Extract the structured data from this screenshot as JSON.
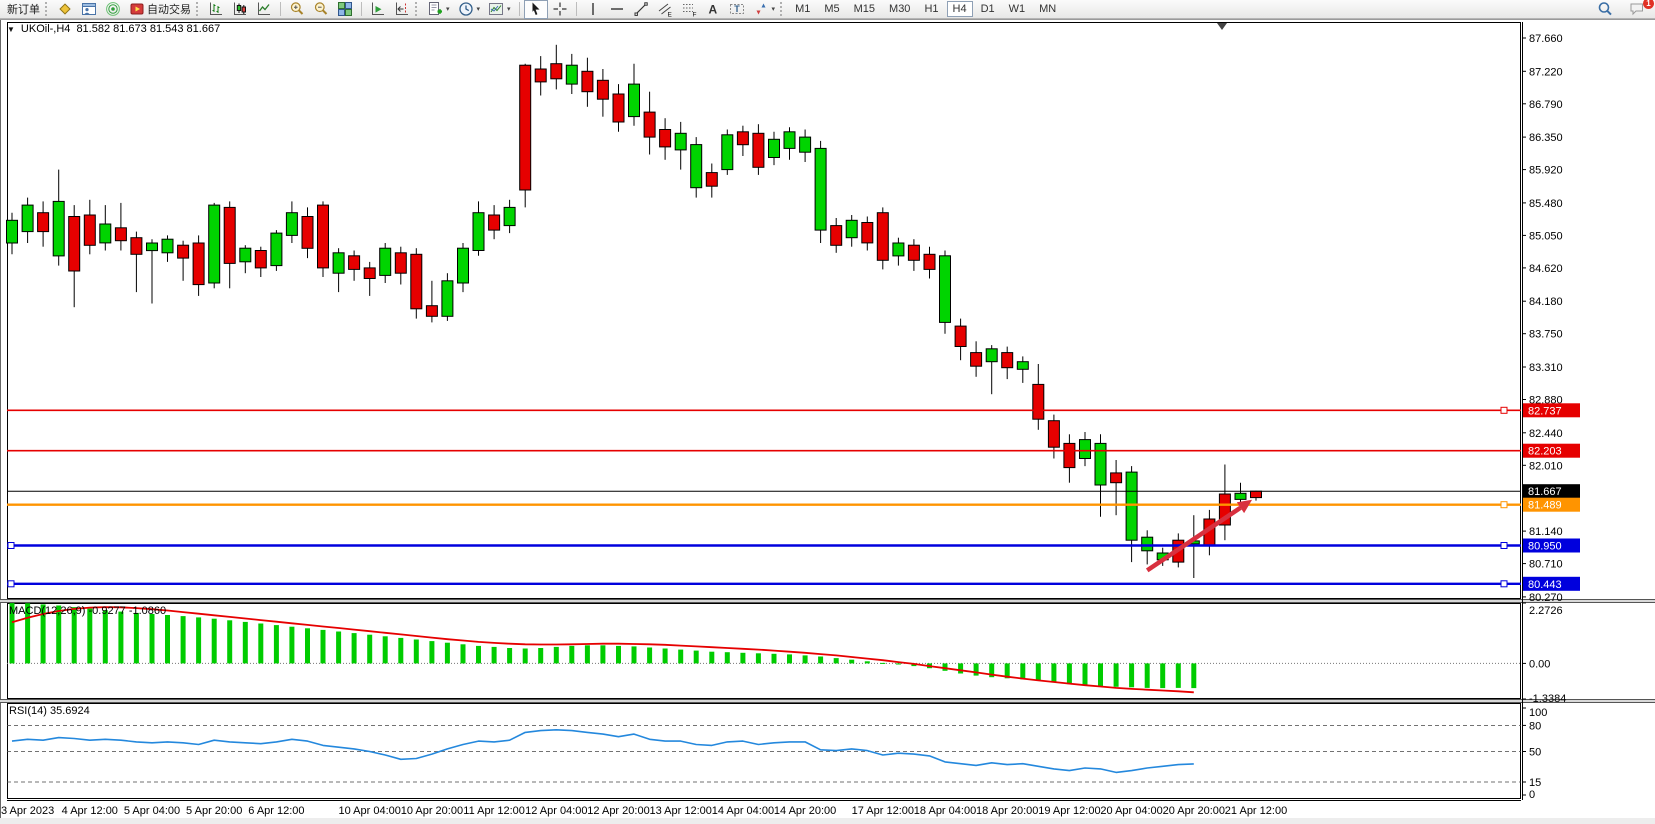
{
  "toolbar": {
    "new_order_label": "新订单",
    "autotrading_label": "自动交易",
    "left_icons": [
      "market-watch-icon",
      "data-window-icon",
      "signal-icon"
    ],
    "chart_type_icons": [
      "bar-chart-icon",
      "candlestick-chart-icon",
      "line-chart-icon"
    ],
    "zoom_icons": [
      "zoom-in-icon",
      "zoom-out-icon",
      "tile-windows-icon"
    ],
    "scroll_icons": [
      "auto-scroll-icon",
      "chart-shift-icon"
    ],
    "dropdown_icons": [
      "add-indicator-icon",
      "periods-clock-icon",
      "template-icon"
    ],
    "pointer_icons": [
      "cursor-icon",
      "crosshair-icon"
    ],
    "drawing_icons": [
      "vertical-line-icon",
      "horizontal-line-icon",
      "trendline-icon",
      "equidistant-channel-icon",
      "fibonacci-icon",
      "text-icon",
      "text-label-icon",
      "arrows-icon"
    ],
    "timeframes": [
      "M1",
      "M5",
      "M15",
      "M30",
      "H1",
      "H4",
      "D1",
      "W1",
      "MN"
    ],
    "active_timeframe": "H4",
    "right_icons": [
      "search-icon",
      "chat-icon"
    ],
    "chat_badge": "1"
  },
  "chart": {
    "symbol_title": "UKOil-,H4",
    "ohlc": "81.582 81.673 81.543 81.667",
    "price_axis_ticks": [
      87.66,
      87.22,
      86.79,
      86.35,
      85.92,
      85.48,
      85.05,
      84.62,
      84.18,
      83.75,
      83.31,
      82.88,
      82.44,
      82.01,
      81.14,
      80.71,
      80.27
    ],
    "price_lines": [
      {
        "label": "82.737",
        "value": 82.737,
        "color": "#e60000",
        "width": 1.6,
        "handle_right": true,
        "handle_left": false
      },
      {
        "label": "82.203",
        "value": 82.203,
        "color": "#e60000",
        "width": 1.6,
        "handle_right": false,
        "handle_left": false
      },
      {
        "label": "81.667",
        "value": 81.667,
        "color": "#000000",
        "width": 1.0,
        "handle_right": false,
        "handle_left": false
      },
      {
        "label": "81.489",
        "value": 81.489,
        "color": "#ff9400",
        "width": 2.4,
        "handle_right": true,
        "handle_left": false
      },
      {
        "label": "80.950",
        "value": 80.95,
        "color": "#0000dd",
        "width": 2.4,
        "handle_right": true,
        "handle_left": true
      },
      {
        "label": "80.443",
        "value": 80.443,
        "color": "#0000dd",
        "width": 2.4,
        "handle_right": true,
        "handle_left": true
      }
    ],
    "macd": {
      "title": "MACD(12,26,9)",
      "values": "-0.9277 -1.0860",
      "axis_labels": [
        "2.2726",
        "0.00",
        "-1.3384"
      ],
      "axis_values": [
        2.2726,
        0,
        -1.3384
      ]
    },
    "rsi": {
      "title": "RSI(14)",
      "value": "35.6924",
      "axis_labels": [
        "100",
        "80",
        "50",
        "15",
        "0"
      ],
      "axis_values": [
        100,
        80,
        50,
        15,
        0
      ],
      "dashed_levels": [
        80,
        50,
        15
      ]
    },
    "time_axis": [
      {
        "text": "3 Apr 2023",
        "i": 1
      },
      {
        "text": "4 Apr 12:00",
        "i": 5
      },
      {
        "text": "5 Apr 04:00",
        "i": 9
      },
      {
        "text": "5 Apr 20:00",
        "i": 13
      },
      {
        "text": "6 Apr 12:00",
        "i": 17
      },
      {
        "text": "10 Apr 04:00",
        "i": 23
      },
      {
        "text": "10 Apr 20:00",
        "i": 27
      },
      {
        "text": "11 Apr 12:00",
        "i": 31
      },
      {
        "text": "12 Apr 04:00",
        "i": 35
      },
      {
        "text": "12 Apr 20:00",
        "i": 39
      },
      {
        "text": "13 Apr 12:00",
        "i": 43
      },
      {
        "text": "14 Apr 04:00",
        "i": 47
      },
      {
        "text": "14 Apr 20:00",
        "i": 51
      },
      {
        "text": "17 Apr 12:00",
        "i": 56
      },
      {
        "text": "18 Apr 04:00",
        "i": 60
      },
      {
        "text": "18 Apr 20:00",
        "i": 64
      },
      {
        "text": "19 Apr 12:00",
        "i": 68
      },
      {
        "text": "20 Apr 04:00",
        "i": 72
      },
      {
        "text": "20 Apr 20:00",
        "i": 76
      },
      {
        "text": "21 Apr 12:00",
        "i": 80
      }
    ],
    "colors": {
      "bull": "#00d400",
      "bear": "#e60000",
      "wick": "#000000",
      "macd_hist": "#00cc00",
      "macd_signal": "#e60000",
      "rsi_line": "#2488dd",
      "arrow": "#d8303f",
      "axis_line": "#000000"
    }
  },
  "chart_data": {
    "type": "candlestick",
    "symbol": "UKOil-",
    "timeframe": "H4",
    "current_ohlc": {
      "open": 81.582,
      "high": 81.673,
      "low": 81.543,
      "close": 81.667
    },
    "ylim": [
      80.22,
      87.87
    ],
    "candle_format": "[high, body_top, body_bottom, low, color g=bull-green r=bear-red]",
    "candles": [
      [
        85.35,
        85.25,
        84.95,
        84.8,
        "g"
      ],
      [
        85.55,
        85.45,
        85.1,
        84.95,
        "g"
      ],
      [
        85.5,
        85.35,
        85.1,
        84.9,
        "r"
      ],
      [
        85.92,
        85.5,
        84.78,
        84.65,
        "g"
      ],
      [
        85.45,
        85.3,
        84.58,
        84.1,
        "r"
      ],
      [
        85.52,
        85.32,
        84.92,
        84.8,
        "r"
      ],
      [
        85.45,
        85.2,
        84.95,
        84.85,
        "g"
      ],
      [
        85.48,
        85.15,
        84.98,
        84.85,
        "r"
      ],
      [
        85.1,
        85.02,
        84.8,
        84.3,
        "r"
      ],
      [
        85.0,
        84.95,
        84.85,
        84.15,
        "g"
      ],
      [
        85.05,
        85.0,
        84.82,
        84.7,
        "g"
      ],
      [
        84.98,
        84.92,
        84.75,
        84.45,
        "r"
      ],
      [
        85.05,
        84.95,
        84.4,
        84.25,
        "r"
      ],
      [
        85.48,
        85.45,
        84.42,
        84.35,
        "g"
      ],
      [
        85.5,
        85.42,
        84.68,
        84.35,
        "r"
      ],
      [
        84.92,
        84.88,
        84.7,
        84.55,
        "g"
      ],
      [
        84.9,
        84.85,
        84.62,
        84.5,
        "r"
      ],
      [
        85.12,
        85.08,
        84.65,
        84.58,
        "g"
      ],
      [
        85.5,
        85.35,
        85.05,
        84.95,
        "g"
      ],
      [
        85.42,
        85.3,
        84.88,
        84.75,
        "r"
      ],
      [
        85.5,
        85.45,
        84.62,
        84.5,
        "r"
      ],
      [
        84.88,
        84.82,
        84.55,
        84.3,
        "g"
      ],
      [
        84.85,
        84.78,
        84.6,
        84.45,
        "r"
      ],
      [
        84.7,
        84.62,
        84.48,
        84.25,
        "r"
      ],
      [
        84.95,
        84.88,
        84.52,
        84.42,
        "g"
      ],
      [
        84.9,
        84.82,
        84.55,
        84.4,
        "r"
      ],
      [
        84.88,
        84.8,
        84.08,
        83.95,
        "r"
      ],
      [
        84.45,
        84.12,
        83.98,
        83.9,
        "r"
      ],
      [
        84.55,
        84.45,
        83.98,
        83.92,
        "g"
      ],
      [
        84.95,
        84.88,
        84.42,
        84.3,
        "g"
      ],
      [
        85.5,
        85.35,
        84.85,
        84.78,
        "g"
      ],
      [
        85.45,
        85.32,
        85.12,
        85.0,
        "r"
      ],
      [
        85.52,
        85.42,
        85.18,
        85.08,
        "g"
      ],
      [
        87.32,
        87.3,
        85.65,
        85.42,
        "r"
      ],
      [
        87.42,
        87.25,
        87.08,
        86.9,
        "r"
      ],
      [
        87.57,
        87.32,
        87.12,
        86.98,
        "r"
      ],
      [
        87.45,
        87.3,
        87.05,
        86.92,
        "g"
      ],
      [
        87.4,
        87.22,
        86.95,
        86.75,
        "r"
      ],
      [
        87.25,
        87.1,
        86.85,
        86.62,
        "r"
      ],
      [
        87.05,
        86.92,
        86.55,
        86.42,
        "r"
      ],
      [
        87.32,
        87.05,
        86.62,
        86.5,
        "g"
      ],
      [
        86.95,
        86.68,
        86.35,
        86.12,
        "r"
      ],
      [
        86.6,
        86.45,
        86.22,
        86.05,
        "r"
      ],
      [
        86.55,
        86.4,
        86.18,
        85.92,
        "g"
      ],
      [
        86.35,
        86.25,
        85.68,
        85.55,
        "g"
      ],
      [
        86.0,
        85.88,
        85.7,
        85.55,
        "r"
      ],
      [
        86.45,
        86.38,
        85.92,
        85.85,
        "g"
      ],
      [
        86.5,
        86.42,
        86.25,
        86.1,
        "r"
      ],
      [
        86.52,
        86.4,
        85.95,
        85.85,
        "r"
      ],
      [
        86.42,
        86.32,
        86.08,
        85.98,
        "g"
      ],
      [
        86.48,
        86.42,
        86.2,
        86.05,
        "g"
      ],
      [
        86.45,
        86.35,
        86.15,
        86.02,
        "g"
      ],
      [
        86.3,
        86.2,
        85.12,
        84.95,
        "g"
      ],
      [
        85.28,
        85.18,
        84.92,
        84.82,
        "r"
      ],
      [
        85.32,
        85.25,
        85.02,
        84.9,
        "g"
      ],
      [
        85.3,
        85.22,
        84.95,
        84.85,
        "r"
      ],
      [
        85.42,
        85.35,
        84.72,
        84.6,
        "r"
      ],
      [
        85.02,
        84.95,
        84.78,
        84.65,
        "g"
      ],
      [
        85.0,
        84.92,
        84.72,
        84.58,
        "r"
      ],
      [
        84.9,
        84.8,
        84.6,
        84.48,
        "r"
      ],
      [
        84.85,
        84.78,
        83.9,
        83.75,
        "g"
      ],
      [
        83.95,
        83.85,
        83.58,
        83.4,
        "r"
      ],
      [
        83.65,
        83.5,
        83.32,
        83.18,
        "r"
      ],
      [
        83.6,
        83.55,
        83.38,
        82.95,
        "g"
      ],
      [
        83.58,
        83.5,
        83.3,
        83.15,
        "r"
      ],
      [
        83.45,
        83.38,
        83.28,
        83.1,
        "g"
      ],
      [
        83.35,
        83.08,
        82.62,
        82.48,
        "r"
      ],
      [
        82.68,
        82.6,
        82.25,
        82.1,
        "r"
      ],
      [
        82.42,
        82.3,
        81.98,
        81.78,
        "r"
      ],
      [
        82.45,
        82.35,
        82.1,
        82.0,
        "g"
      ],
      [
        82.42,
        82.3,
        81.75,
        81.33,
        "g"
      ],
      [
        82.08,
        81.91,
        81.78,
        81.35,
        "r"
      ],
      [
        82.0,
        81.92,
        81.02,
        80.73,
        "g"
      ],
      [
        81.15,
        81.06,
        80.88,
        80.7,
        "g"
      ],
      [
        80.92,
        80.85,
        80.76,
        80.68,
        "g"
      ],
      [
        81.11,
        81.02,
        80.73,
        80.66,
        "r"
      ],
      [
        81.35,
        81.01,
        80.97,
        80.52,
        "g"
      ],
      [
        81.42,
        81.3,
        80.95,
        80.82,
        "r"
      ],
      [
        82.02,
        81.63,
        81.22,
        81.02,
        "r"
      ],
      [
        81.78,
        81.64,
        81.56,
        81.45,
        "g"
      ],
      [
        81.673,
        81.667,
        81.582,
        81.543,
        "r"
      ]
    ],
    "macd_range": [
      -1.3384,
      2.2726
    ],
    "macd_histogram": [
      2.27,
      2.26,
      2.22,
      2.18,
      2.12,
      2.06,
      2.0,
      1.95,
      1.9,
      1.86,
      1.82,
      1.78,
      1.73,
      1.68,
      1.62,
      1.56,
      1.5,
      1.44,
      1.38,
      1.32,
      1.26,
      1.2,
      1.14,
      1.08,
      1.02,
      0.96,
      0.9,
      0.84,
      0.78,
      0.72,
      0.66,
      0.62,
      0.58,
      0.56,
      0.58,
      0.62,
      0.66,
      0.68,
      0.68,
      0.66,
      0.64,
      0.6,
      0.56,
      0.52,
      0.48,
      0.44,
      0.42,
      0.4,
      0.38,
      0.36,
      0.34,
      0.3,
      0.26,
      0.2,
      0.14,
      0.08,
      0.02,
      -0.04,
      -0.1,
      -0.18,
      -0.28,
      -0.38,
      -0.46,
      -0.52,
      -0.56,
      -0.6,
      -0.66,
      -0.72,
      -0.78,
      -0.82,
      -0.86,
      -0.88,
      -0.9,
      -0.92,
      -0.93,
      -0.92,
      -0.9277
    ],
    "macd_signal": [
      1.55,
      1.72,
      1.86,
      1.97,
      2.05,
      2.1,
      2.12,
      2.11,
      2.08,
      2.04,
      1.99,
      1.93,
      1.87,
      1.81,
      1.75,
      1.69,
      1.63,
      1.57,
      1.51,
      1.45,
      1.39,
      1.33,
      1.27,
      1.21,
      1.15,
      1.09,
      1.03,
      0.97,
      0.91,
      0.86,
      0.81,
      0.77,
      0.74,
      0.72,
      0.71,
      0.71,
      0.72,
      0.73,
      0.74,
      0.74,
      0.73,
      0.72,
      0.7,
      0.67,
      0.64,
      0.61,
      0.58,
      0.55,
      0.52,
      0.48,
      0.44,
      0.4,
      0.35,
      0.3,
      0.24,
      0.18,
      0.12,
      0.05,
      -0.02,
      -0.1,
      -0.18,
      -0.26,
      -0.34,
      -0.42,
      -0.5,
      -0.57,
      -0.64,
      -0.7,
      -0.76,
      -0.82,
      -0.87,
      -0.92,
      -0.96,
      -0.99,
      -1.02,
      -1.05,
      -1.086
    ],
    "rsi_values": [
      62,
      64,
      63,
      66,
      65,
      63,
      64,
      63,
      61,
      60,
      61,
      60,
      58,
      63,
      61,
      60,
      59,
      61,
      64,
      62,
      57,
      55,
      53,
      50,
      46,
      41,
      42,
      47,
      53,
      58,
      62,
      61,
      63,
      72,
      74,
      75,
      74,
      72,
      70,
      67,
      70,
      64,
      62,
      62,
      58,
      57,
      61,
      62,
      58,
      60,
      61,
      61,
      52,
      51,
      53,
      51,
      46,
      48,
      47,
      45,
      38,
      36,
      34,
      37,
      35,
      36,
      33,
      30,
      28,
      31,
      30,
      26,
      28,
      31,
      33,
      35,
      35.69
    ],
    "annotation_arrow": {
      "x1_index": 73,
      "price1": 80.62,
      "x2_index": 79,
      "price2": 81.45
    }
  }
}
